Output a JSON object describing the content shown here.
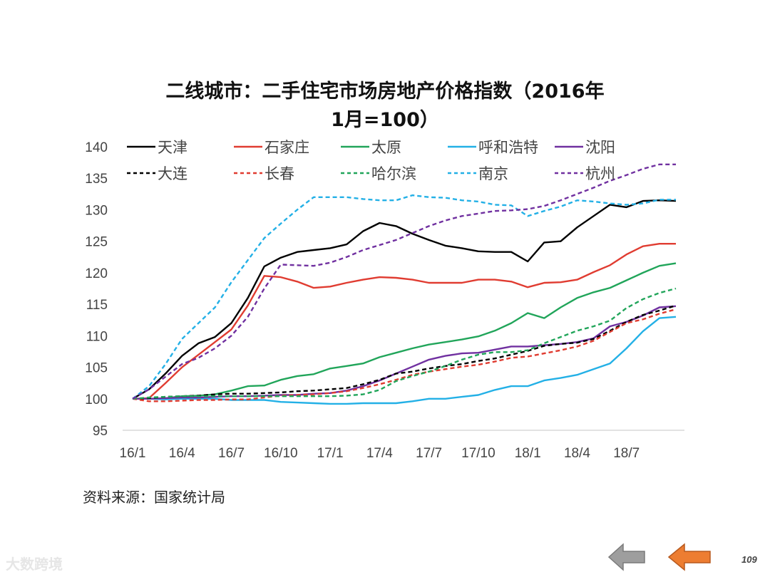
{
  "page": {
    "title_line1": "二线城市：二手住宅市场房地产价格指数（2016年",
    "title_line2": "1月=100）",
    "source": "资料来源：国家统计局",
    "watermark": "大数跨境",
    "page_number": "109",
    "nav": {
      "prev_icon": "left-arrow-icon",
      "next_icon": "left-arrow-icon",
      "prev_color": "#9e9e9e",
      "next_color": "#ed7d31"
    }
  },
  "chart_data": {
    "type": "line",
    "ylim": [
      95,
      140
    ],
    "yticks": [
      95,
      100,
      105,
      110,
      115,
      120,
      125,
      130,
      135,
      140
    ],
    "xtick_labels": [
      "16/1",
      "16/4",
      "16/7",
      "16/10",
      "17/1",
      "17/4",
      "17/7",
      "17/10",
      "18/1",
      "18/4",
      "18/7"
    ],
    "x": [
      "16/1",
      "16/2",
      "16/3",
      "16/4",
      "16/5",
      "16/6",
      "16/7",
      "16/8",
      "16/9",
      "16/10",
      "16/11",
      "16/12",
      "17/1",
      "17/2",
      "17/3",
      "17/4",
      "17/5",
      "17/6",
      "17/7",
      "17/8",
      "17/9",
      "17/10",
      "17/11",
      "17/12",
      "18/1",
      "18/2",
      "18/3",
      "18/4",
      "18/5",
      "18/6",
      "18/7",
      "18/8",
      "18/9",
      "18/10"
    ],
    "grid": false,
    "legend_position": "top",
    "series": [
      {
        "name": "天津",
        "color": "#000000",
        "dashed": false,
        "values": [
          100,
          101.5,
          104,
          106.8,
          108.8,
          109.8,
          112,
          116,
          121,
          122.4,
          123.3,
          123.6,
          123.9,
          124.5,
          126.6,
          127.9,
          127.4,
          126.2,
          125.2,
          124.3,
          123.9,
          123.4,
          123.3,
          123.3,
          121.8,
          124.8,
          125,
          127.2,
          129,
          130.8,
          130.4,
          131.4,
          131.5,
          131.4
        ]
      },
      {
        "name": "石家庄",
        "color": "#e03c31",
        "dashed": false,
        "values": [
          100,
          100.1,
          102.5,
          105,
          107,
          109,
          111,
          114.8,
          119.5,
          119.3,
          118.6,
          117.6,
          117.8,
          118.4,
          118.9,
          119.3,
          119.2,
          118.9,
          118.4,
          118.4,
          118.4,
          118.9,
          118.9,
          118.6,
          117.7,
          118.4,
          118.5,
          118.9,
          120.1,
          121.2,
          122.9,
          124.2,
          124.6,
          124.6
        ]
      },
      {
        "name": "太原",
        "color": "#21a55a",
        "dashed": false,
        "values": [
          100,
          100,
          100.1,
          100.4,
          100.5,
          100.7,
          101.3,
          102,
          102.1,
          103,
          103.6,
          103.9,
          104.8,
          105.2,
          105.6,
          106.6,
          107.3,
          108,
          108.6,
          109,
          109.4,
          109.9,
          110.8,
          112,
          113.6,
          112.8,
          114.5,
          116,
          116.9,
          117.6,
          118.8,
          120,
          121.1,
          121.5
        ]
      },
      {
        "name": "呼和浩特",
        "color": "#23b0e6",
        "dashed": false,
        "values": [
          100,
          100,
          99.9,
          100,
          100,
          100,
          99.8,
          99.8,
          99.8,
          99.5,
          99.4,
          99.3,
          99.2,
          99.2,
          99.3,
          99.3,
          99.3,
          99.6,
          100,
          100,
          100.3,
          100.6,
          101.4,
          102,
          102,
          102.9,
          103.3,
          103.8,
          104.7,
          105.6,
          108,
          110.7,
          112.8,
          113
        ]
      },
      {
        "name": "沈阳",
        "color": "#7030a0",
        "dashed": false,
        "values": [
          100,
          100,
          100.1,
          100.2,
          100.2,
          100.3,
          100.4,
          100.4,
          100.5,
          100.6,
          100.6,
          100.8,
          100.9,
          101.3,
          102,
          102.9,
          104,
          105.1,
          106.2,
          106.8,
          107.2,
          107.3,
          107.8,
          108.3,
          108.3,
          108.5,
          108.7,
          109,
          109.6,
          111.5,
          112.2,
          113.2,
          114.5,
          114.7
        ]
      },
      {
        "name": "大连",
        "color": "#000000",
        "dashed": true,
        "values": [
          100,
          100.1,
          100.3,
          100.4,
          100.5,
          100.7,
          100.8,
          100.8,
          100.9,
          101,
          101.2,
          101.3,
          101.5,
          101.7,
          102.3,
          103,
          104,
          104.3,
          104.8,
          105.2,
          105.5,
          106,
          106.4,
          107,
          107.6,
          108.4,
          108.7,
          108.9,
          109.5,
          110.8,
          112.2,
          113.3,
          114,
          114.8
        ]
      },
      {
        "name": "长春",
        "color": "#e03c31",
        "dashed": true,
        "values": [
          100,
          99.6,
          99.6,
          99.7,
          99.8,
          99.8,
          99.9,
          99.9,
          100.2,
          100.5,
          100.6,
          100.7,
          100.9,
          101.2,
          101.7,
          102.3,
          103,
          103.8,
          104.3,
          104.7,
          105.1,
          105.4,
          105.9,
          106.5,
          106.7,
          107.2,
          107.7,
          108.3,
          109.2,
          110.6,
          112,
          112.6,
          113.5,
          114.2
        ]
      },
      {
        "name": "哈尔滨",
        "color": "#21a55a",
        "dashed": true,
        "values": [
          100,
          100.2,
          100.3,
          100.4,
          100.4,
          100.4,
          100.4,
          100.4,
          100.4,
          100.4,
          100.4,
          100.4,
          100.4,
          100.5,
          100.7,
          101.4,
          102.8,
          103.6,
          104.3,
          105.2,
          106.2,
          107,
          107.4,
          107.4,
          107.7,
          108.8,
          109.8,
          110.8,
          111.5,
          112.4,
          114.4,
          115.8,
          116.8,
          117.5
        ]
      },
      {
        "name": "南京",
        "color": "#23b0e6",
        "dashed": true,
        "values": [
          100,
          102,
          105.5,
          109.5,
          112,
          114.5,
          118.5,
          122,
          125.5,
          127.8,
          130,
          132,
          132,
          132,
          131.7,
          131.5,
          131.5,
          132.3,
          132,
          131.9,
          131.5,
          131.3,
          130.8,
          130.7,
          129,
          129.8,
          130.5,
          131.5,
          131.3,
          131,
          130.8,
          131,
          131.6,
          131.6
        ]
      },
      {
        "name": "杭州",
        "color": "#7030a0",
        "dashed": true,
        "values": [
          100,
          101.5,
          103.5,
          105.5,
          106.5,
          108,
          110,
          113,
          117.5,
          121.3,
          121.2,
          121.1,
          121.6,
          122.5,
          123.6,
          124.4,
          125.2,
          126.3,
          127.4,
          128.3,
          129,
          129.4,
          129.8,
          129.9,
          130.1,
          130.6,
          131.5,
          132.5,
          133.5,
          134.6,
          135.5,
          136.5,
          137.2,
          137.2
        ]
      }
    ]
  }
}
